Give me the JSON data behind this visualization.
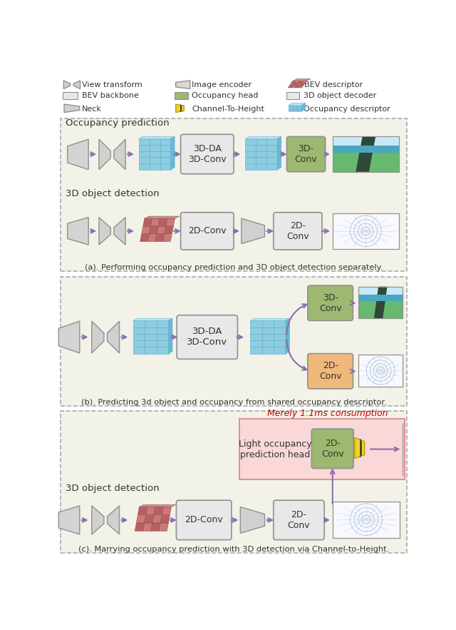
{
  "fig_width": 6.4,
  "fig_height": 8.83,
  "bg_color": "#ffffff",
  "panel_bg": "#f5f5ec",
  "panel_a_title": "Occupancy prediction",
  "panel_b_title": "3D object detection",
  "det_label_c": "3D object detection",
  "caption_a": "(a). Performing occupancy prediction and 3D object detection separately.",
  "caption_b": "(b). Predicting 3d object and occupancy from shared occupancy descriptor.",
  "caption_c": "(c). Marrying occupancy prediction with 3D detection via Channel-to-Height.",
  "merely_label": "Merely 1.1ms consumption",
  "occ_head_label": "Light occupancy\nprediction head",
  "arrow_color": "#8b6fad",
  "box_gray": "#e0e0e0",
  "box_green": "#9db870",
  "box_orange": "#f0b87a",
  "box_pink_bg": "#fad8d8",
  "grid3d_blue": "#8ecce0",
  "grid3d_blue_top": "#b8e4f4",
  "grid3d_blue_right": "#68b8d8",
  "grid3d_red": "#b86060",
  "grid3d_red_top": "#d08888",
  "grid3d_red_right": "#905050",
  "dashed_color": "#aaaaaa",
  "shape_gray": "#c8c8c8",
  "shape_light": "#e8e8e8"
}
